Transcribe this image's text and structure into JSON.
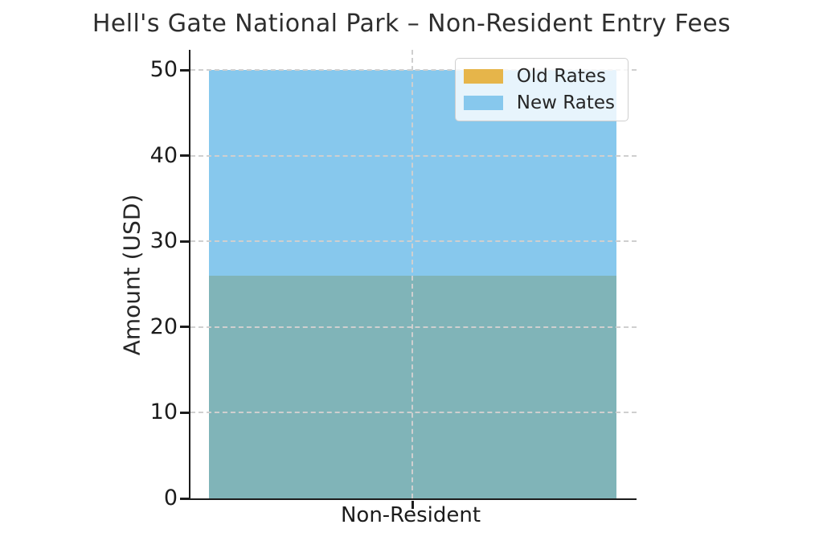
{
  "chart_data": {
    "type": "bar",
    "title": "Hell's Gate National Park – Non-Resident Entry Fees",
    "ylabel": "Amount (USD)",
    "xlabel": "",
    "categories": [
      "Non-Resident"
    ],
    "series": [
      {
        "name": "Old Rates",
        "values": [
          26
        ],
        "color": "#e6b54a"
      },
      {
        "name": "New Rates",
        "values": [
          50
        ],
        "color": "#87c8ed"
      }
    ],
    "overlap_color": "#80b4b8",
    "ylim": [
      0,
      50
    ],
    "yticks": [
      0,
      10,
      20,
      30,
      40,
      50
    ],
    "grid": true,
    "grid_style": "dashed",
    "grid_color": "#cfcfcf",
    "axis_color": "#1c1c1c",
    "text_color": "#262626",
    "legend_position": "upper right",
    "legend_labels": [
      "Old Rates",
      "New Rates"
    ]
  }
}
